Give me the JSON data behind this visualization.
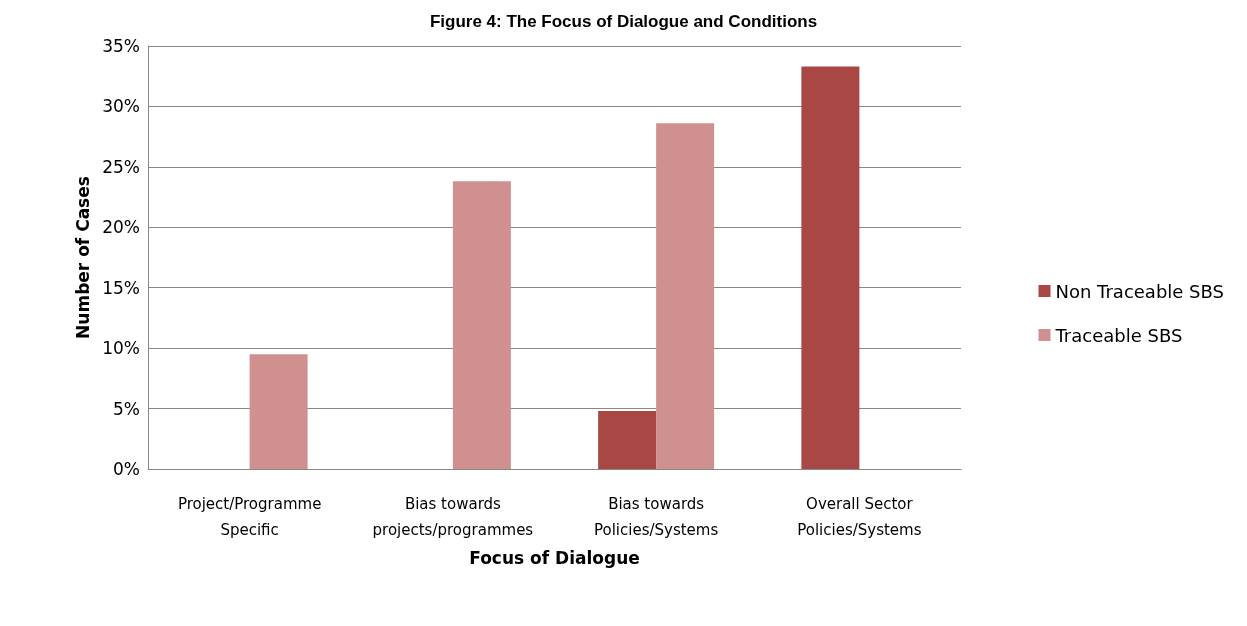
{
  "chart_data": {
    "type": "bar",
    "title": "Figure 4: The Focus of Dialogue and Conditions",
    "xlabel": "Focus of Dialogue",
    "ylabel": "Number of Cases",
    "categories": [
      "Project/Programme\nSpecific",
      "Bias towards\nprojects/programmes",
      "Bias towards\nPolicies/Systems",
      "Overall Sector\nPolicies/Systems"
    ],
    "series": [
      {
        "name": "Non Traceable SBS",
        "color": "#a94745",
        "values": [
          null,
          null,
          4.8,
          33.3
        ]
      },
      {
        "name": "Traceable SBS",
        "color": "#d09090",
        "values": [
          9.5,
          23.8,
          28.6,
          null
        ]
      }
    ],
    "ylim": [
      0,
      35
    ],
    "yticks": [
      {
        "value": 0,
        "label": "0%"
      },
      {
        "value": 5,
        "label": "5%"
      },
      {
        "value": 10,
        "label": "10%"
      },
      {
        "value": 15,
        "label": "15%"
      },
      {
        "value": 20,
        "label": "20%"
      },
      {
        "value": 25,
        "label": "25%"
      },
      {
        "value": 30,
        "label": "30%"
      },
      {
        "value": 35,
        "label": "35%"
      }
    ],
    "grid": "y",
    "legend": "right"
  }
}
